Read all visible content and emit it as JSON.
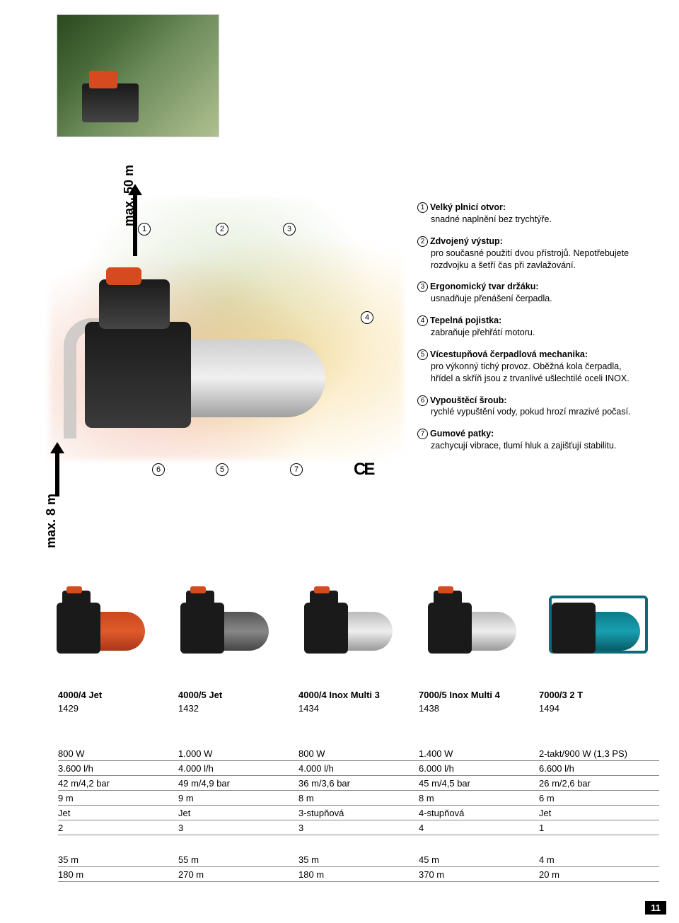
{
  "arrows": {
    "vertical_top_label": "max. 50 m",
    "vertical_left_label": "max. 8 m"
  },
  "callouts": {
    "items": [
      {
        "n": "1",
        "title": "Velký plnicí otvor:",
        "desc": "snadné naplnění bez trychtýře."
      },
      {
        "n": "2",
        "title": "Zdvojený výstup:",
        "desc": "pro současné použití dvou přístrojů. Nepotřebujete rozdvojku a šetří čas při zavlažování."
      },
      {
        "n": "3",
        "title": "Ergonomický tvar držáku:",
        "desc": "usnadňuje přenášení čerpadla."
      },
      {
        "n": "4",
        "title": "Tepelná pojistka:",
        "desc": "zabraňuje přehřátí motoru."
      },
      {
        "n": "5",
        "title": "Vícestupňová čerpadlová mechanika:",
        "desc": "pro výkonný tichý provoz. Oběžná kola čerpadla, hřídel a skříň jsou z trvanlivé ušlechtilé oceli INOX."
      },
      {
        "n": "6",
        "title": "Vypouštěcí šroub:",
        "desc": "rychlé vypuštění vody, pokud hrozí mrazivé počasí."
      },
      {
        "n": "7",
        "title": "Gumové patky:",
        "desc": "zachycují vibrace, tlumí hluk a zajišťují stabilitu."
      }
    ]
  },
  "ce_mark": "CE",
  "callout_markers": [
    "1",
    "2",
    "3",
    "4",
    "5",
    "6",
    "7"
  ],
  "products": [
    {
      "name": "4000/4 Jet",
      "num": "1429",
      "thumb_variant": "t-orange"
    },
    {
      "name": "4000/5 Jet",
      "num": "1432",
      "thumb_variant": "t-grey"
    },
    {
      "name": "4000/4 Inox Multi 3",
      "num": "1434",
      "thumb_variant": "t-orange"
    },
    {
      "name": "7000/5 Inox Multi 4",
      "num": "1438",
      "thumb_variant": "t-inox"
    },
    {
      "name": "7000/3 2 T",
      "num": "1494",
      "thumb_variant": "t-teal"
    }
  ],
  "spec_table_1": [
    [
      "800 W",
      "1.000 W",
      "800 W",
      "1.400 W",
      "2-takt/900 W (1,3 PS)"
    ],
    [
      "3.600 l/h",
      "4.000 l/h",
      "4.000 l/h",
      "6.000 l/h",
      "6.600 l/h"
    ],
    [
      "42 m/4,2 bar",
      "49 m/4,9 bar",
      "36 m/3,6 bar",
      "45 m/4,5 bar",
      "26 m/2,6 bar"
    ],
    [
      "9 m",
      "9 m",
      "8 m",
      "8 m",
      "6 m"
    ],
    [
      "Jet",
      "Jet",
      "3-stupňová",
      "4-stupňová",
      "Jet"
    ],
    [
      "2",
      "3",
      "3",
      "4",
      "1"
    ]
  ],
  "spec_table_2": [
    [
      "35 m",
      "55 m",
      "35 m",
      "45 m",
      "4 m"
    ],
    [
      "180 m",
      "270 m",
      "180 m",
      "370 m",
      "20 m"
    ]
  ],
  "page_number": "11",
  "colors": {
    "orange": "#d64a1f",
    "teal": "#0d7a8a",
    "steel": "#c0c0c0",
    "black": "#1a1a1a",
    "border": "#888888"
  }
}
